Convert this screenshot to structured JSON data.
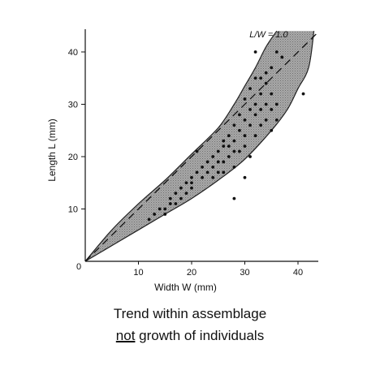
{
  "chart_data": {
    "type": "scatter",
    "title": "",
    "xlabel": "Width W (mm)",
    "ylabel": "Length L (mm)",
    "xlim": [
      0,
      44
    ],
    "ylim": [
      0,
      44
    ],
    "x_ticks": [
      10,
      20,
      30,
      40
    ],
    "y_ticks": [
      10,
      20,
      30,
      40
    ],
    "origin_label": "0",
    "grid": false,
    "annotation": "L/W = 1.0",
    "reference_line": {
      "label": "L/W = 1.0",
      "style": "dashed",
      "slope": 1.0
    },
    "band": {
      "description": "shaded envelope",
      "upper": [
        [
          0,
          0
        ],
        [
          5,
          6
        ],
        [
          10,
          11
        ],
        [
          15,
          15.5
        ],
        [
          20,
          20.5
        ],
        [
          25,
          25.5
        ],
        [
          28,
          30
        ],
        [
          30,
          33.5
        ],
        [
          32,
          37
        ],
        [
          34,
          41
        ],
        [
          36,
          44
        ]
      ],
      "lower": [
        [
          0,
          0
        ],
        [
          5,
          3
        ],
        [
          10,
          6
        ],
        [
          15,
          9
        ],
        [
          20,
          12
        ],
        [
          25,
          15.5
        ],
        [
          30,
          19.5
        ],
        [
          35,
          25
        ],
        [
          38,
          29
        ],
        [
          40,
          33
        ],
        [
          42,
          37
        ],
        [
          43,
          44
        ]
      ]
    },
    "points": [
      [
        12,
        8
      ],
      [
        13,
        9
      ],
      [
        14,
        10
      ],
      [
        15,
        10
      ],
      [
        15,
        9
      ],
      [
        16,
        11
      ],
      [
        16,
        12
      ],
      [
        17,
        11
      ],
      [
        17,
        13
      ],
      [
        18,
        12
      ],
      [
        18,
        14
      ],
      [
        19,
        13
      ],
      [
        19,
        15
      ],
      [
        20,
        14
      ],
      [
        20,
        15
      ],
      [
        20,
        16
      ],
      [
        21,
        21
      ],
      [
        21,
        17
      ],
      [
        22,
        18
      ],
      [
        22,
        16
      ],
      [
        23,
        17
      ],
      [
        23,
        19
      ],
      [
        24,
        18
      ],
      [
        24,
        20
      ],
      [
        24,
        16
      ],
      [
        25,
        19
      ],
      [
        25,
        17
      ],
      [
        25,
        21
      ],
      [
        26,
        17
      ],
      [
        26,
        19
      ],
      [
        26,
        22
      ],
      [
        26,
        23
      ],
      [
        27,
        20
      ],
      [
        27,
        22
      ],
      [
        27,
        24
      ],
      [
        28,
        18
      ],
      [
        28,
        21
      ],
      [
        28,
        23
      ],
      [
        28,
        26
      ],
      [
        29,
        25
      ],
      [
        29,
        21
      ],
      [
        29,
        28
      ],
      [
        30,
        27
      ],
      [
        30,
        24
      ],
      [
        30,
        31
      ],
      [
        30,
        22
      ],
      [
        31,
        26
      ],
      [
        31,
        29
      ],
      [
        31,
        33
      ],
      [
        31,
        20
      ],
      [
        32,
        30
      ],
      [
        32,
        35
      ],
      [
        32,
        28
      ],
      [
        32,
        24
      ],
      [
        33,
        32
      ],
      [
        33,
        29
      ],
      [
        33,
        26
      ],
      [
        34,
        30
      ],
      [
        34,
        36
      ],
      [
        34,
        27
      ],
      [
        34,
        34
      ],
      [
        35,
        32
      ],
      [
        35,
        29
      ],
      [
        35,
        25
      ],
      [
        35,
        37
      ],
      [
        36,
        30
      ],
      [
        36,
        40
      ],
      [
        36,
        27
      ],
      [
        37,
        39
      ],
      [
        28,
        12
      ],
      [
        32,
        40
      ],
      [
        33,
        35
      ],
      [
        30,
        16
      ],
      [
        41,
        32
      ]
    ]
  },
  "caption": {
    "line1": "Trend within assemblage",
    "not_word": "not",
    "line2_rest": " growth of individuals"
  }
}
